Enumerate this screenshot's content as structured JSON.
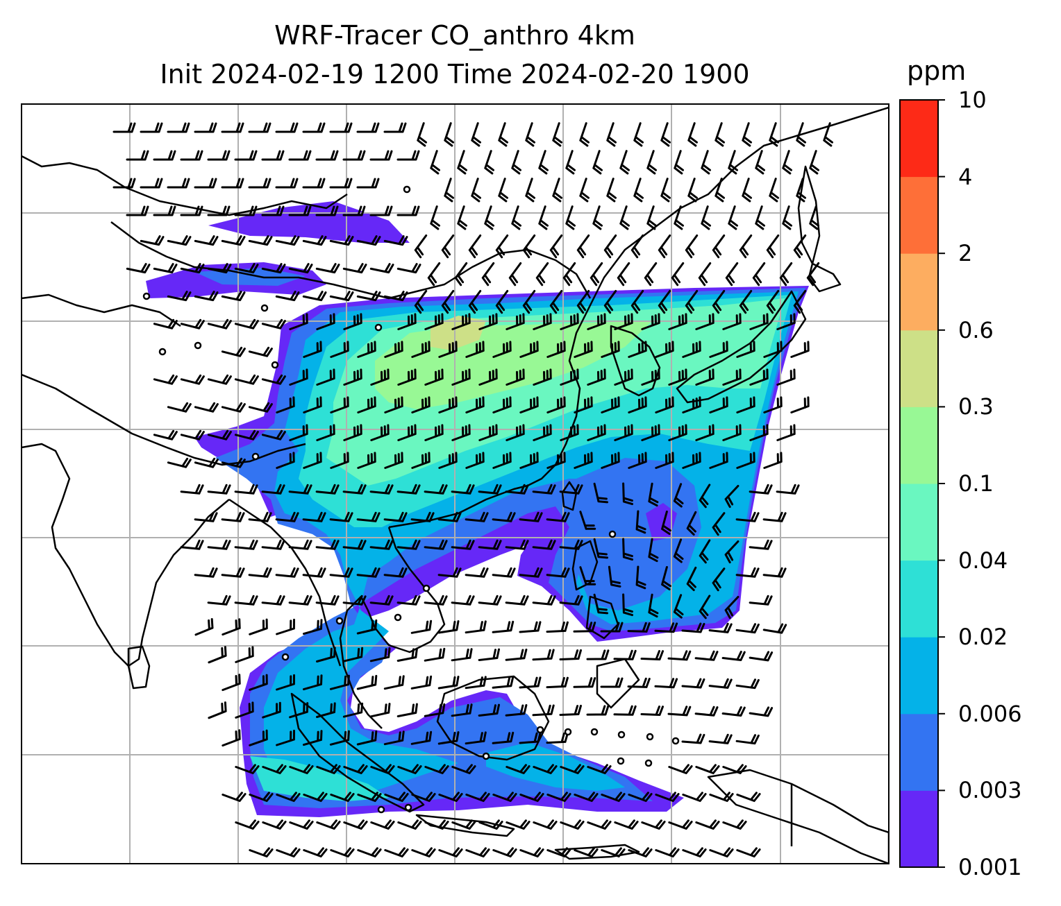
{
  "title": {
    "line1": "WRF-Tracer CO_anthro 4km",
    "line2": "Init 2024-02-19 1200 Time 2024-02-20 1900"
  },
  "colorbar": {
    "unit": "ppm",
    "ticks": [
      "0.001",
      "0.003",
      "0.006",
      "0.02",
      "0.04",
      "0.1",
      "0.3",
      "0.6",
      "2",
      "4",
      "10"
    ],
    "colors": [
      "#6628f7",
      "#3374f2",
      "#04b2e8",
      "#2ee0d6",
      "#6af7c0",
      "#98f895",
      "#cde087",
      "#fdad60",
      "#fe6f38",
      "#fd2a17"
    ]
  },
  "map": {
    "variable": "CO_anthro",
    "overlay": "wind barbs",
    "coastline_color": "#000000",
    "gridline_color": "#b0b0b0"
  }
}
